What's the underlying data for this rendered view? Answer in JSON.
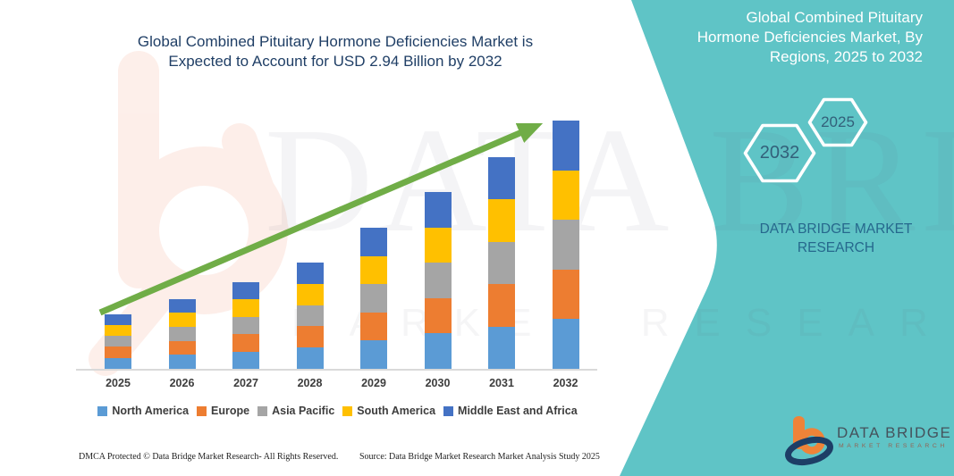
{
  "left_section": {
    "title_lines": [
      "Global Combined Pituitary Hormone Deficiencies Market is",
      "Expected to Account for USD 2.94 Billion by 2032"
    ]
  },
  "side_panel": {
    "title_lines": [
      "Global Combined Pituitary",
      "Hormone Deficiencies Market, By",
      "Regions, 2025 to 2032"
    ],
    "hexagons": [
      {
        "label": "2032"
      },
      {
        "label": "2025"
      }
    ],
    "brand_lines": [
      "DATA BRIDGE MARKET",
      "RESEARCH"
    ],
    "bg_color": "#5fc4c6"
  },
  "chart_data": {
    "type": "bar",
    "stacked": true,
    "title": "Global Combined Pituitary Hormone Deficiencies Market is Expected to Account for USD 2.94 Billion by 2032",
    "value_unit": "USD Billion",
    "categories": [
      "2025",
      "2026",
      "2027",
      "2028",
      "2029",
      "2030",
      "2031",
      "2032"
    ],
    "series": [
      {
        "name": "North America",
        "color": "#5B9BD5",
        "values": [
          0.13,
          0.166,
          0.206,
          0.252,
          0.334,
          0.418,
          0.502,
          0.588
        ]
      },
      {
        "name": "Europe",
        "color": "#ED7D31",
        "values": [
          0.13,
          0.166,
          0.206,
          0.252,
          0.334,
          0.418,
          0.502,
          0.588
        ]
      },
      {
        "name": "Asia Pacific",
        "color": "#A5A5A5",
        "values": [
          0.13,
          0.166,
          0.206,
          0.252,
          0.334,
          0.418,
          0.502,
          0.588
        ]
      },
      {
        "name": "South America",
        "color": "#FFC000",
        "values": [
          0.13,
          0.166,
          0.206,
          0.252,
          0.334,
          0.418,
          0.502,
          0.588
        ]
      },
      {
        "name": "Middle East and Africa",
        "color": "#4472C4",
        "values": [
          0.13,
          0.166,
          0.206,
          0.252,
          0.334,
          0.418,
          0.502,
          0.588
        ]
      }
    ],
    "totals_usd_billion": [
      0.65,
      0.83,
      1.03,
      1.26,
      1.67,
      2.09,
      2.51,
      2.94
    ],
    "highlight_value": "USD 2.94 Billion by 2032",
    "trend_arrow": true,
    "legend_position": "bottom",
    "gridlines": false,
    "ylim": [
      0,
      3.1
    ]
  },
  "watermarks": {
    "big": "DATA BRIDGE",
    "sub": "MARKET RESEARCH"
  },
  "footer": {
    "dmca": "DMCA Protected © Data Bridge Market Research-  All Rights Reserved.",
    "source": "Source: Data Bridge Market Research  Market Analysis Study 2025"
  },
  "logo": {
    "title": "DATA BRIDGE",
    "subtitle": "MARKET RESEARCH"
  },
  "colors": {
    "arrow": "#70AD47",
    "title_text": "#203f66",
    "teal_panel": "#5fc4c6",
    "axis_line": "#d9d9d9"
  }
}
